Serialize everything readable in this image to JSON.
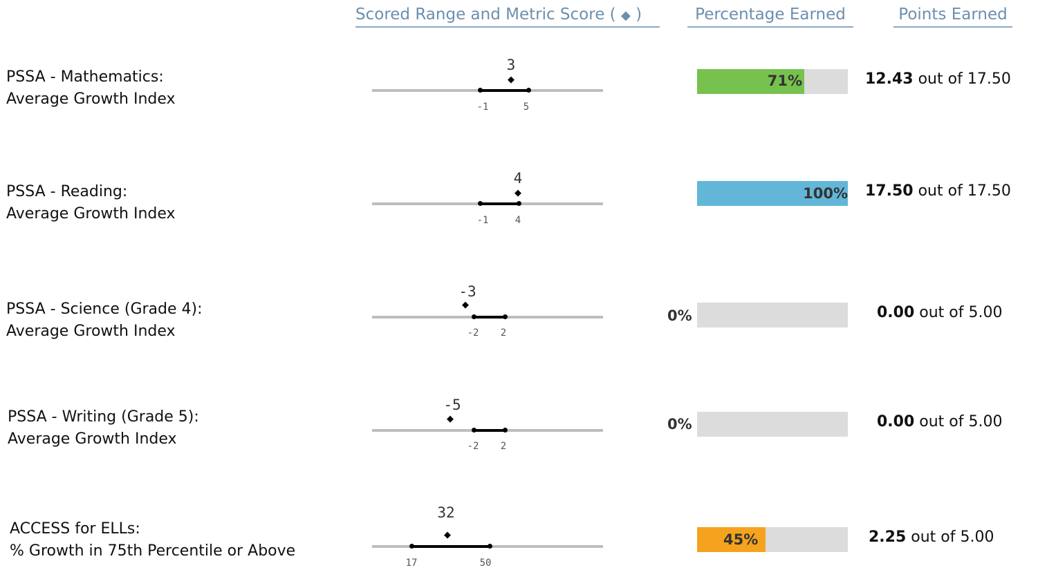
{
  "headers": {
    "range_label": "Scored Range and Metric Score",
    "range_open": "(",
    "range_diamond": "◆",
    "range_close": ")",
    "pct_label": "Percentage Earned",
    "points_label": "Points Earned"
  },
  "rows": [
    {
      "label1": "PSSA - Mathematics:",
      "label2": "Average Growth Index",
      "score": "3",
      "low": "-1",
      "high": "5",
      "pct_text": "71%",
      "pct": 71,
      "color": "#77c24e",
      "earned": "12.43",
      "out_of": "out of",
      "max": "17.50"
    },
    {
      "label1": "PSSA - Reading:",
      "label2": "Average Growth Index",
      "score": "4",
      "low": "-1",
      "high": "4",
      "pct_text": "100%",
      "pct": 100,
      "color": "#62b7d9",
      "earned": "17.50",
      "out_of": "out of",
      "max": "17.50"
    },
    {
      "label1": "PSSA - Science (Grade 4):",
      "label2": "Average Growth Index",
      "score": "-3",
      "low": "-2",
      "high": "2",
      "pct_text": "0%",
      "pct": 0,
      "color": "#dcdcdc",
      "earned": "0.00",
      "out_of": "out of",
      "max": "5.00"
    },
    {
      "label1": "PSSA - Writing (Grade 5):",
      "label2": "Average Growth Index",
      "score": "-5",
      "low": "-2",
      "high": "2",
      "pct_text": "0%",
      "pct": 0,
      "color": "#dcdcdc",
      "earned": "0.00",
      "out_of": "out of",
      "max": "5.00"
    },
    {
      "label1": "ACCESS for ELLs:",
      "label2": "% Growth in 75th Percentile or Above",
      "score": "32",
      "low": "17",
      "high": "50",
      "pct_text": "45%",
      "pct": 45,
      "color": "#f5a31e",
      "earned": "2.25",
      "out_of": "out of",
      "max": "5.00"
    }
  ],
  "score_marker": "◆"
}
